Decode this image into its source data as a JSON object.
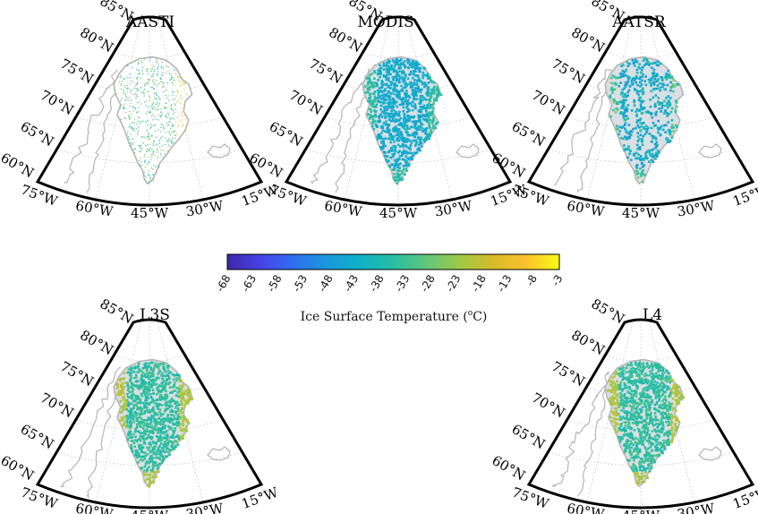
{
  "panels": [
    {
      "id": "aasti",
      "title": "AASTI",
      "style": "sparse"
    },
    {
      "id": "modis",
      "title": "MODIS",
      "style": "blue"
    },
    {
      "id": "aatsr",
      "title": "AATSR",
      "style": "patchy"
    },
    {
      "id": "l3s",
      "title": "L3S",
      "style": "green"
    },
    {
      "id": "l4",
      "title": "L4",
      "style": "green"
    }
  ],
  "lat_labels": [
    "85°N",
    "80°N",
    "75°N",
    "70°N",
    "65°N",
    "60°N"
  ],
  "lon_labels": [
    "75°W",
    "60°W",
    "45°W",
    "30°W",
    "15°W"
  ],
  "colorbar": {
    "title": "Ice Surface Temperature (",
    "title_sup": "o",
    "title_end": "C)",
    "min": -68,
    "max": -3,
    "ticks": [
      "-68",
      "-63",
      "-58",
      "-53",
      "-48",
      "-43",
      "-38",
      "-33",
      "-28",
      "-23",
      "-18",
      "-13",
      "-8",
      "-3"
    ],
    "colormap": [
      "#3e26a8",
      "#4743e6",
      "#2f6fef",
      "#1998dc",
      "#0fb1c9",
      "#28bea2",
      "#60c67a",
      "#9fc945",
      "#d6bb2b",
      "#fbc22c",
      "#f9fb15"
    ]
  },
  "colors": {
    "land_outline": "#b5b5b5",
    "frame": "#000000",
    "grid": "#c8c8c8"
  }
}
